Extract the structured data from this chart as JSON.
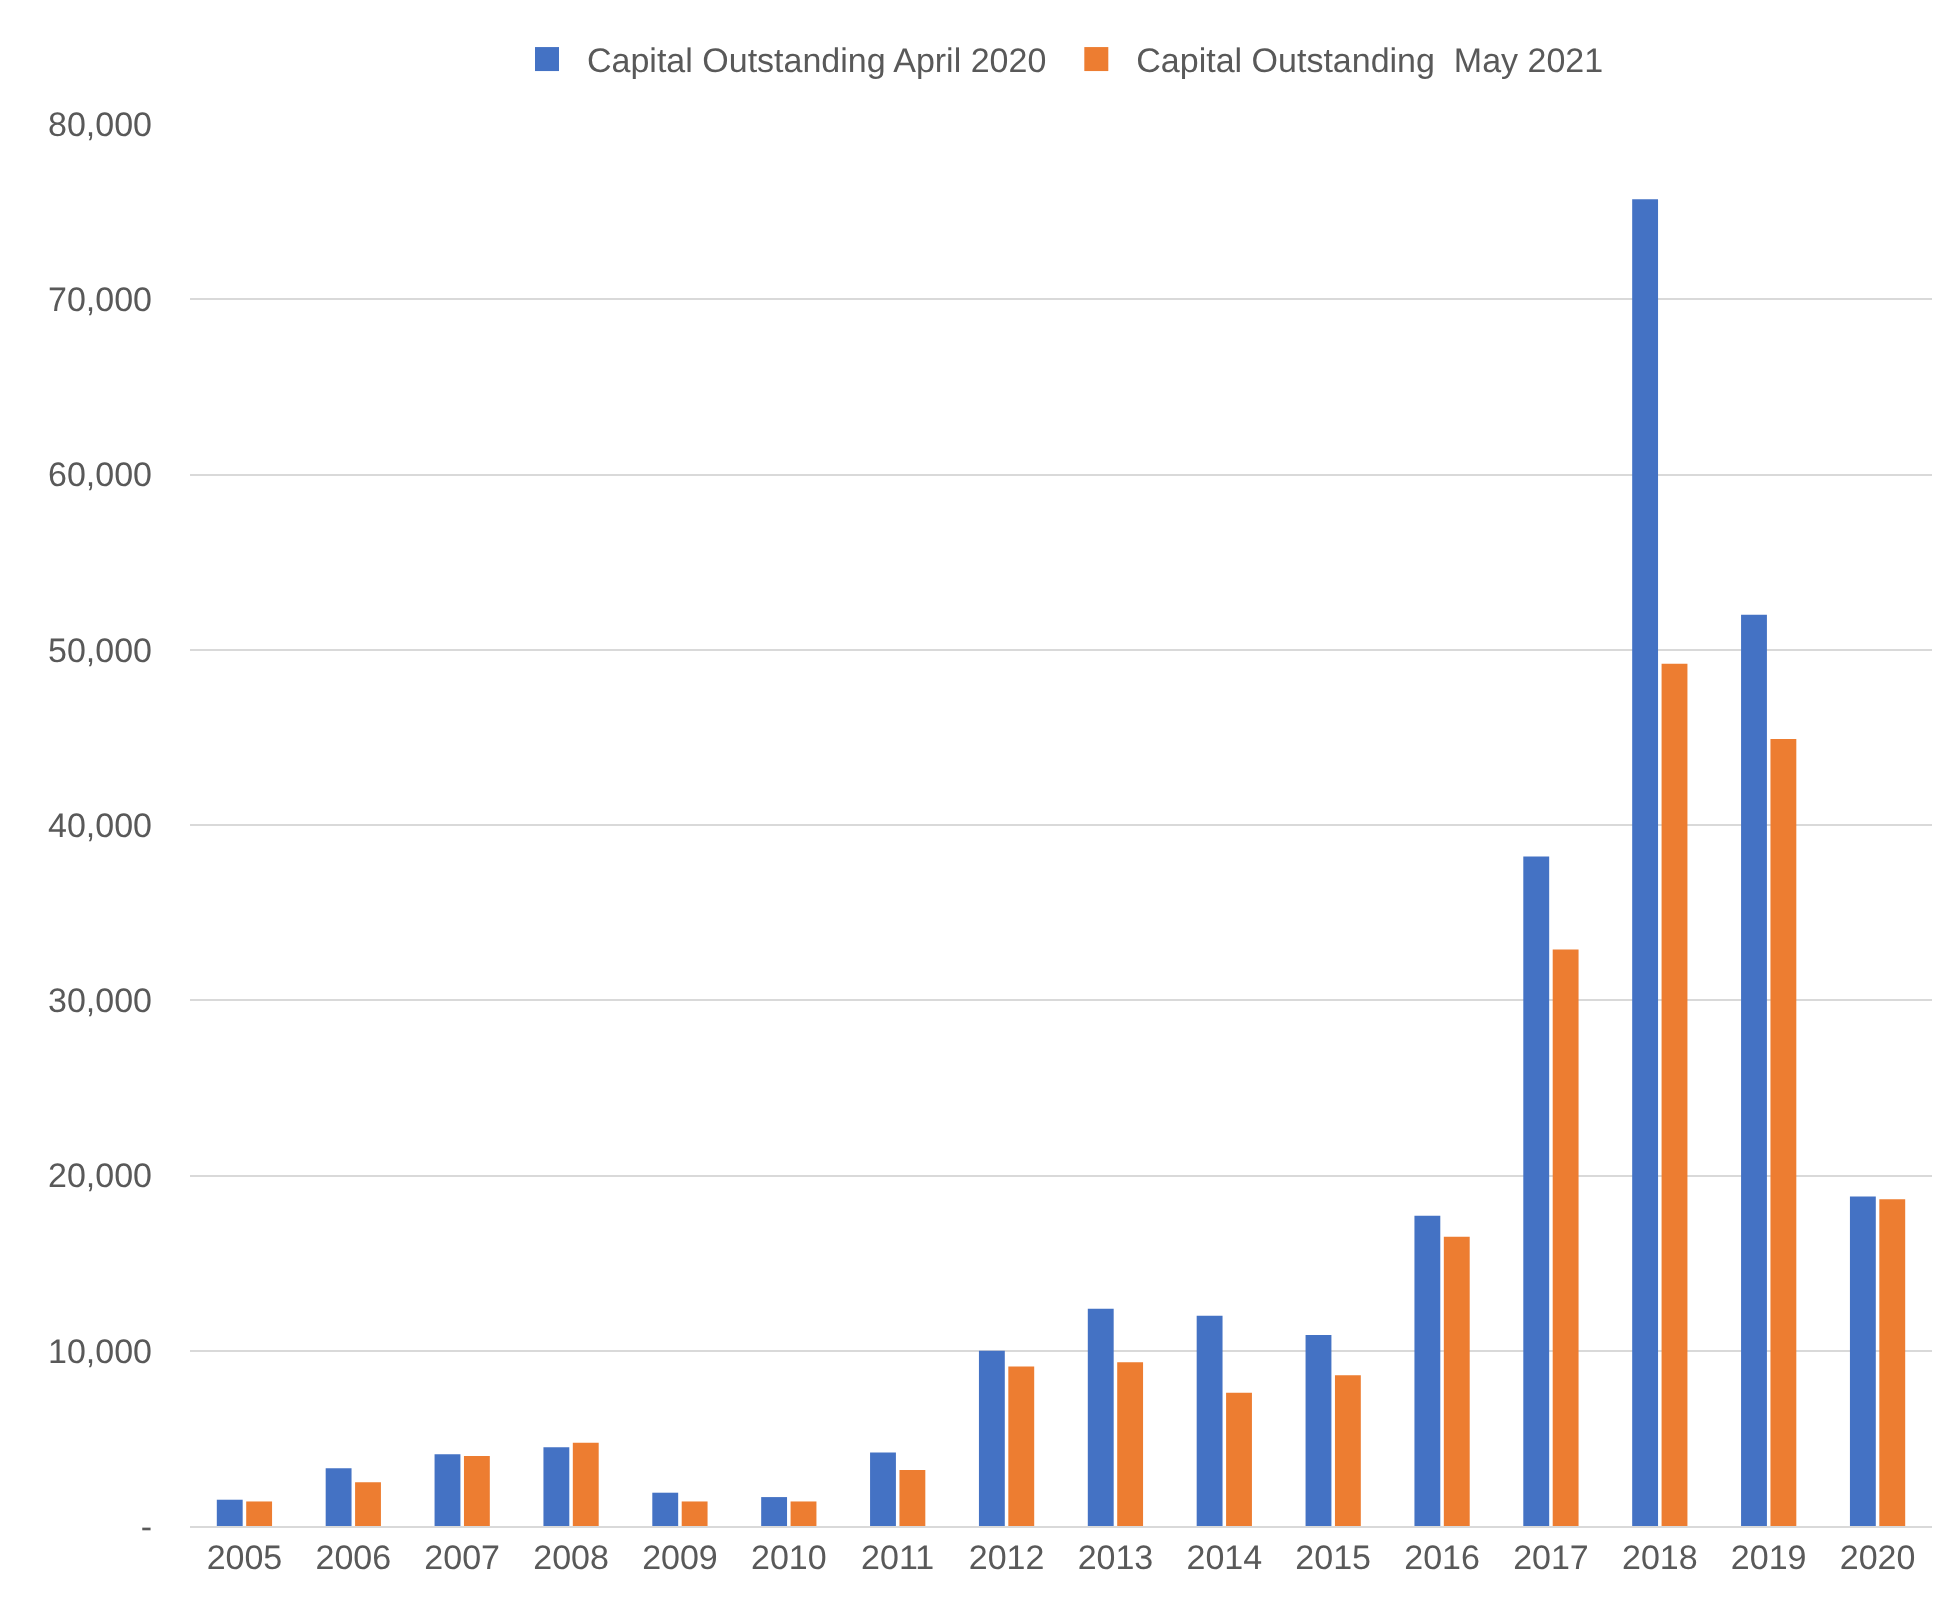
{
  "chart_data": {
    "type": "bar",
    "categories": [
      "2005",
      "2006",
      "2007",
      "2008",
      "2009",
      "2010",
      "2011",
      "2012",
      "2013",
      "2014",
      "2015",
      "2016",
      "2017",
      "2018",
      "2019",
      "2020"
    ],
    "series": [
      {
        "name": "Capital Outstanding April 2020",
        "color": "#4472c4",
        "values": [
          1500,
          3300,
          4100,
          4500,
          1900,
          1650,
          4200,
          10000,
          12400,
          12000,
          10900,
          17700,
          38200,
          75700,
          52000,
          18800
        ]
      },
      {
        "name": "Capital Outstanding  May 2021",
        "color": "#ed7d31",
        "values": [
          1400,
          2500,
          4000,
          4750,
          1400,
          1400,
          3200,
          9100,
          9350,
          7600,
          8600,
          16500,
          32900,
          49200,
          44900,
          18650
        ]
      }
    ],
    "ylim": [
      0,
      80000
    ],
    "yticks": [
      {
        "value": 0,
        "label": "-"
      },
      {
        "value": 10000,
        "label": "10,000"
      },
      {
        "value": 20000,
        "label": "20,000"
      },
      {
        "value": 30000,
        "label": "30,000"
      },
      {
        "value": 40000,
        "label": "40,000"
      },
      {
        "value": 50000,
        "label": "50,000"
      },
      {
        "value": 60000,
        "label": "60,000"
      },
      {
        "value": 70000,
        "label": "70,000"
      },
      {
        "value": 80000,
        "label": "80,000"
      }
    ],
    "grid": "y",
    "legend": "top"
  }
}
